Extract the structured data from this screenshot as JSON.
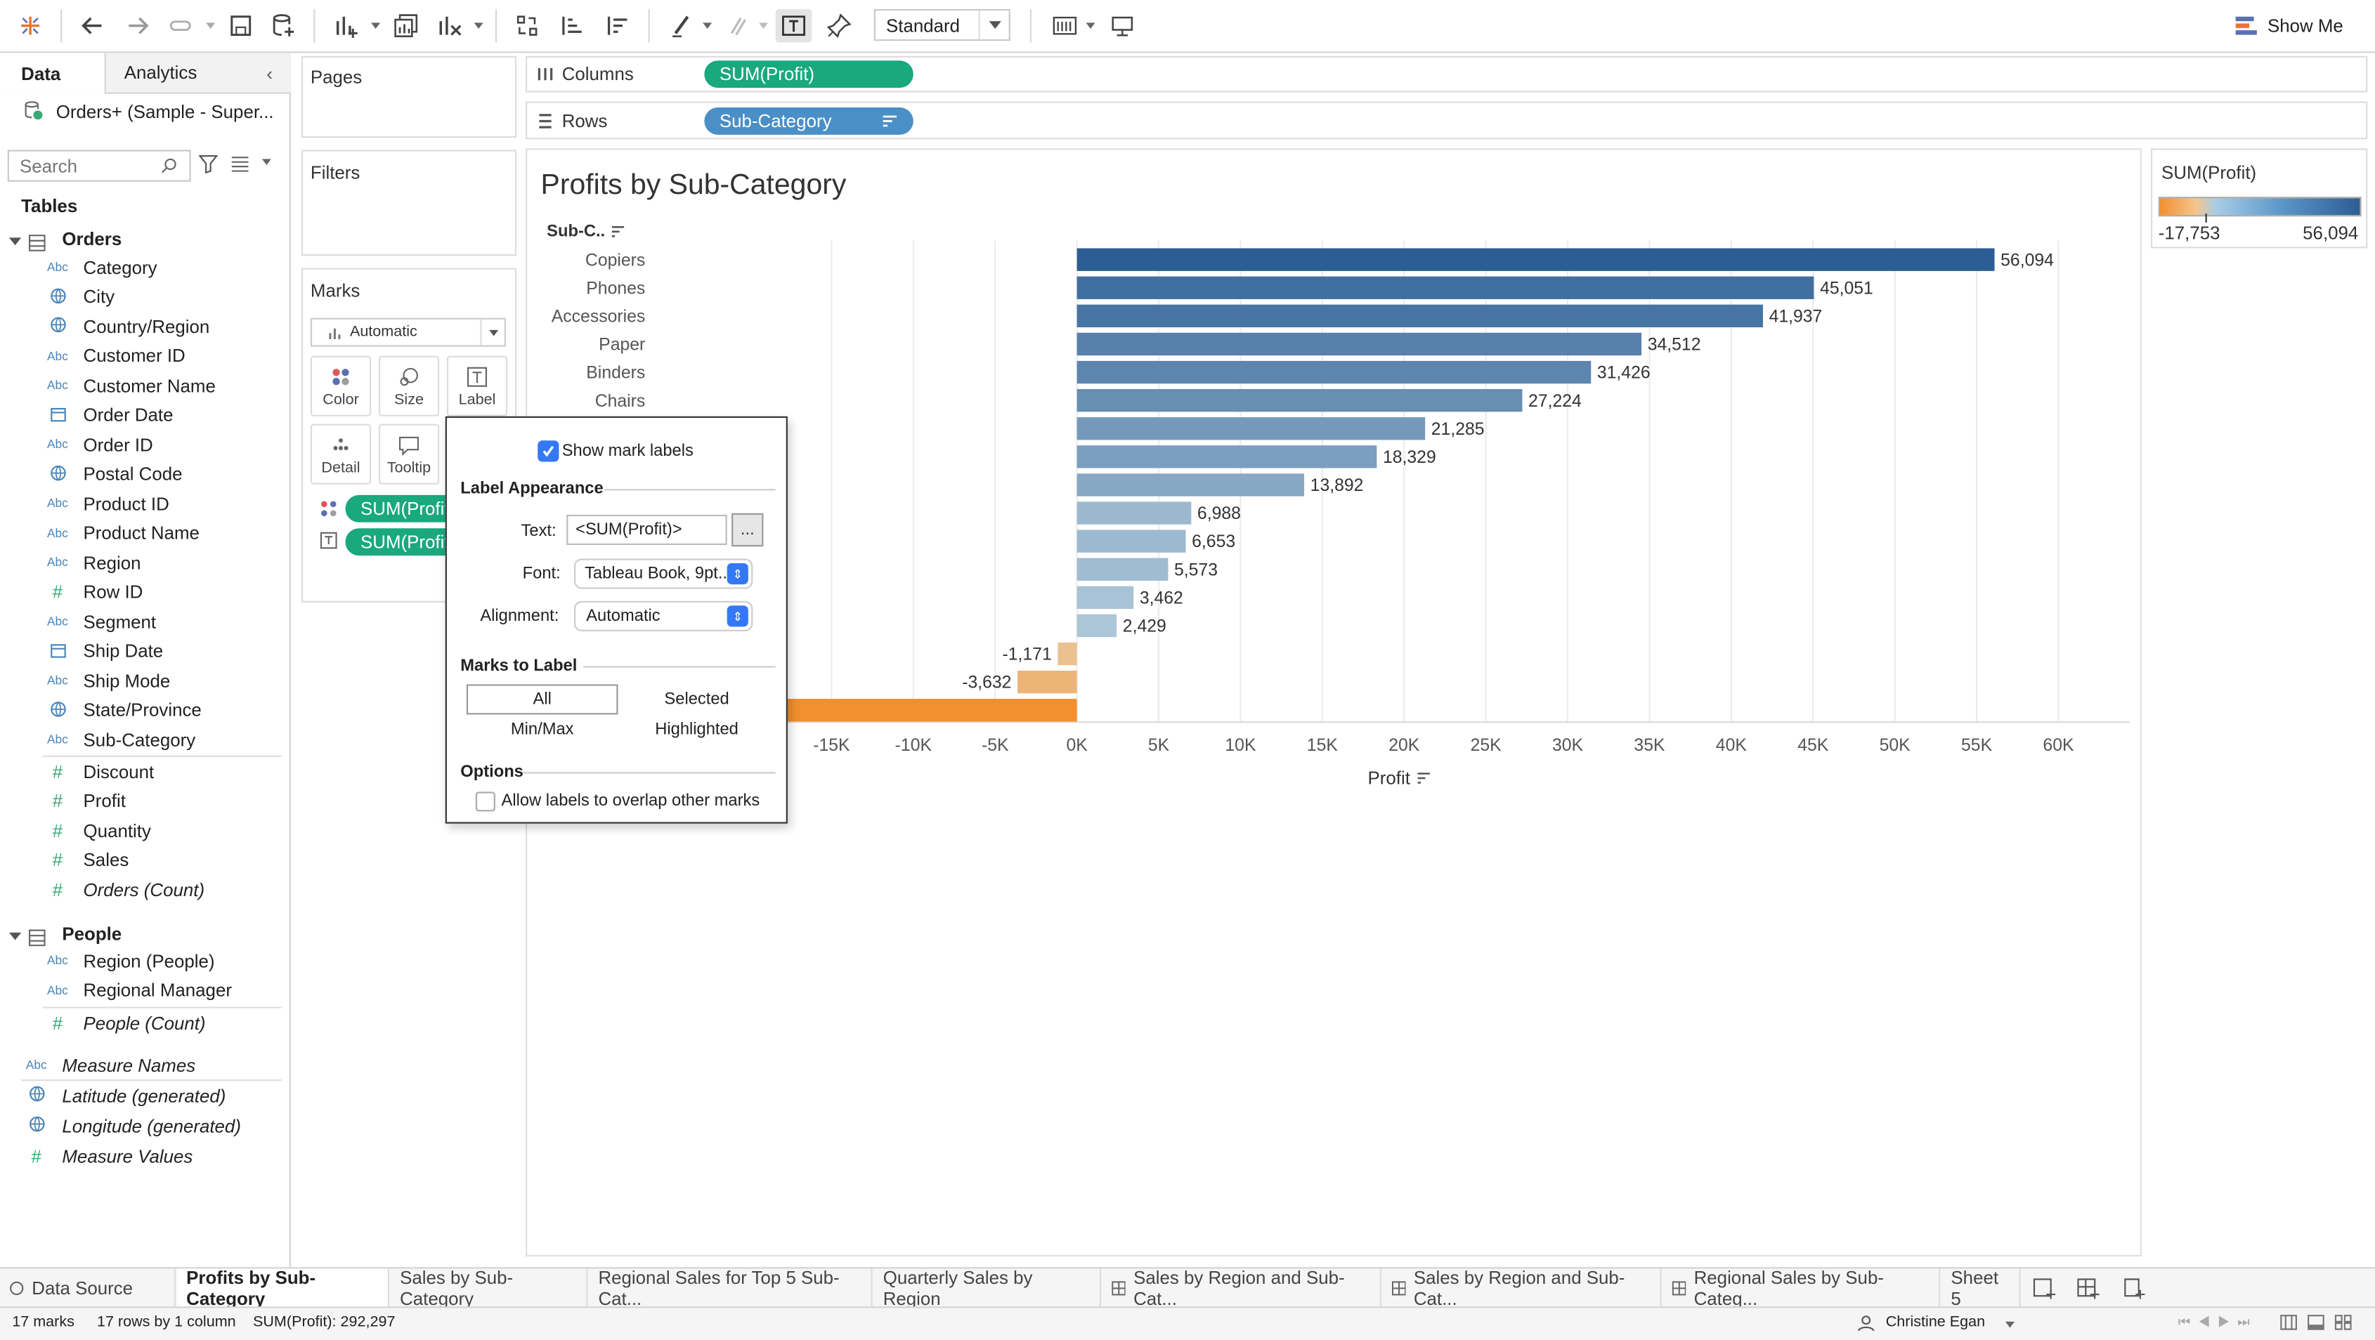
{
  "toolbar": {
    "view_size": "Standard",
    "show_me": "Show Me"
  },
  "left_panel": {
    "tabs": {
      "data": "Data",
      "analytics": "Analytics"
    },
    "datasource": "Orders+ (Sample - Super...",
    "search_placeholder": "Search",
    "tables_heading": "Tables",
    "orders": {
      "label": "Orders",
      "fields": [
        {
          "name": "Category",
          "type": "Abc"
        },
        {
          "name": "City",
          "type": "geo"
        },
        {
          "name": "Country/Region",
          "type": "geo"
        },
        {
          "name": "Customer ID",
          "type": "Abc"
        },
        {
          "name": "Customer Name",
          "type": "Abc"
        },
        {
          "name": "Order Date",
          "type": "date"
        },
        {
          "name": "Order ID",
          "type": "Abc"
        },
        {
          "name": "Postal Code",
          "type": "geo"
        },
        {
          "name": "Product ID",
          "type": "Abc"
        },
        {
          "name": "Product Name",
          "type": "Abc"
        },
        {
          "name": "Region",
          "type": "Abc"
        },
        {
          "name": "Row ID",
          "type": "#"
        },
        {
          "name": "Segment",
          "type": "Abc"
        },
        {
          "name": "Ship Date",
          "type": "date"
        },
        {
          "name": "Ship Mode",
          "type": "Abc"
        },
        {
          "name": "State/Province",
          "type": "geo"
        },
        {
          "name": "Sub-Category",
          "type": "Abc"
        }
      ],
      "measures": [
        "Discount",
        "Profit",
        "Quantity",
        "Sales",
        "Orders (Count)"
      ]
    },
    "people": {
      "label": "People",
      "fields": [
        "Region (People)",
        "Regional Manager"
      ],
      "measures": [
        "People (Count)"
      ]
    },
    "extra": [
      "Measure Names",
      "Latitude (generated)",
      "Longitude (generated)",
      "Measure Values"
    ]
  },
  "shelves": {
    "pages": "Pages",
    "filters": "Filters",
    "marks": "Marks",
    "marks_type": "Automatic",
    "marks_buttons": [
      "Color",
      "Size",
      "Label",
      "Detail",
      "Tooltip"
    ],
    "marks_pills": [
      "SUM(Profit)",
      "SUM(Profit)"
    ],
    "columns_label": "Columns",
    "columns_pill": "SUM(Profit)",
    "rows_label": "Rows",
    "rows_pill": "Sub-Category"
  },
  "legend": {
    "title": "SUM(Profit)",
    "min": "-17,753",
    "max": "56,094"
  },
  "popup": {
    "show_labels": "Show mark labels",
    "label_appearance": "Label Appearance",
    "text_label": "Text:",
    "text_value": "<SUM(Profit)>",
    "more": "...",
    "font_label": "Font:",
    "font_value": "Tableau Book, 9pt...",
    "alignment_label": "Alignment:",
    "alignment_value": "Automatic",
    "marks_to_label": "Marks to Label",
    "opt_all": "All",
    "opt_selected": "Selected",
    "opt_minmax": "Min/Max",
    "opt_highlighted": "Highlighted",
    "options": "Options",
    "allow_overlap": "Allow labels to overlap other marks"
  },
  "sheet_tabs": [
    "Data Source",
    "Profits by Sub-Category",
    "Sales by Sub-Category",
    "Regional Sales for Top 5 Sub-Cat...",
    "Quarterly Sales by Region",
    "Sales by Region and Sub-Cat...",
    "Sales by Region and Sub-Cat...",
    "Regional Sales by Sub-Categ...",
    "Sheet 5"
  ],
  "status": {
    "marks": "17 marks",
    "rows": "17 rows by 1 column",
    "sum": "SUM(Profit): 292,297",
    "user": "Christine Egan"
  },
  "colors": {
    "green_pill": "#1aa87d",
    "blue_pill": "#4a8fc6",
    "dark_bar": "#2c5d94",
    "orange_bar": "#f28f2f"
  },
  "chart_data": {
    "type": "bar",
    "title": "Profits by Sub-Category",
    "row_header": "Sub-C..",
    "xlabel": "Profit",
    "xlim": [
      -20000,
      62000
    ],
    "x_ticks": [
      "-15K",
      "-10K",
      "-5K",
      "0K",
      "5K",
      "10K",
      "15K",
      "20K",
      "25K",
      "30K",
      "35K",
      "40K",
      "45K",
      "50K",
      "55K",
      "60K"
    ],
    "x_tick_values": [
      -15000,
      -10000,
      -5000,
      0,
      5000,
      10000,
      15000,
      20000,
      25000,
      30000,
      35000,
      40000,
      45000,
      50000,
      55000,
      60000
    ],
    "categories": [
      "Copiers",
      "Phones",
      "Accessories",
      "Paper",
      "Binders",
      "Chairs",
      "",
      "",
      "",
      "",
      "",
      "",
      "",
      "",
      "",
      "",
      ""
    ],
    "values": [
      56094,
      45051,
      41937,
      34512,
      31426,
      27224,
      21285,
      18329,
      13892,
      6988,
      6653,
      5573,
      3462,
      2429,
      -1171,
      -3632,
      -17753
    ],
    "labels": [
      "56,094",
      "45,051",
      "41,937",
      "34,512",
      "31,426",
      "27,224",
      "21,285",
      "18,329",
      "13,892",
      "6,988",
      "6,653",
      "5,573",
      "3,462",
      "2,429",
      "-1,171",
      "-3,632",
      ""
    ],
    "color_range": [
      -17753,
      56094
    ]
  }
}
